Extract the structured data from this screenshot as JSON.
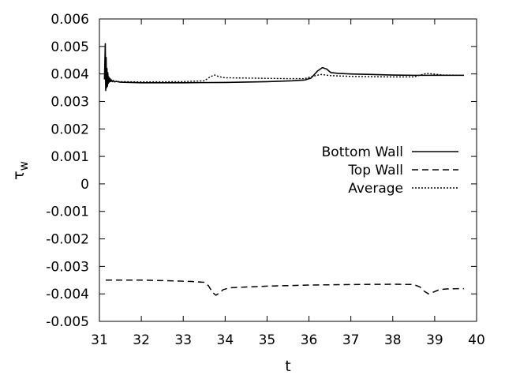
{
  "chart_data": {
    "type": "line",
    "title": "",
    "xlabel": "t",
    "ylabel_base": "τ",
    "ylabel_sub": "w",
    "xlim": [
      31,
      40
    ],
    "ylim": [
      -0.005,
      0.006
    ],
    "x_ticks": [
      31,
      32,
      33,
      34,
      35,
      36,
      37,
      38,
      39,
      40
    ],
    "x_tick_labels": [
      "31",
      "32",
      "33",
      "34",
      "35",
      "36",
      "37",
      "38",
      "39",
      "40"
    ],
    "y_ticks": [
      -0.005,
      -0.004,
      -0.003,
      -0.002,
      -0.001,
      0,
      0.001,
      0.002,
      0.003,
      0.004,
      0.005,
      0.006
    ],
    "y_tick_labels": [
      "-0.005",
      "-0.004",
      "-0.003",
      "-0.002",
      "-0.001",
      "0",
      "0.001",
      "0.002",
      "0.003",
      "0.004",
      "0.005",
      "0.006"
    ],
    "grid": false,
    "legend_position": "right-middle",
    "series": [
      {
        "name": "Bottom Wall",
        "style": "solid",
        "color": "#000000",
        "points": [
          [
            31.12,
            0.0038
          ],
          [
            31.14,
            0.0051
          ],
          [
            31.15,
            0.0034
          ],
          [
            31.16,
            0.0046
          ],
          [
            31.17,
            0.0035
          ],
          [
            31.18,
            0.0042
          ],
          [
            31.19,
            0.00355
          ],
          [
            31.2,
            0.00405
          ],
          [
            31.21,
            0.00365
          ],
          [
            31.22,
            0.0039
          ],
          [
            31.23,
            0.0037
          ],
          [
            31.24,
            0.00385
          ],
          [
            31.25,
            0.00372
          ],
          [
            31.26,
            0.00382
          ],
          [
            31.27,
            0.00373
          ],
          [
            31.29,
            0.00378
          ],
          [
            31.31,
            0.00372
          ],
          [
            31.33,
            0.00376
          ],
          [
            31.36,
            0.00371
          ],
          [
            31.4,
            0.00373
          ],
          [
            31.5,
            0.0037
          ],
          [
            32.0,
            0.00368
          ],
          [
            33.0,
            0.00368
          ],
          [
            34.0,
            0.00369
          ],
          [
            35.0,
            0.00372
          ],
          [
            35.6,
            0.00375
          ],
          [
            35.9,
            0.00378
          ],
          [
            36.05,
            0.00385
          ],
          [
            36.2,
            0.0041
          ],
          [
            36.32,
            0.00423
          ],
          [
            36.42,
            0.00418
          ],
          [
            36.52,
            0.00405
          ],
          [
            36.7,
            0.00402
          ],
          [
            37.0,
            0.004
          ],
          [
            37.5,
            0.00398
          ],
          [
            38.0,
            0.00396
          ],
          [
            38.5,
            0.00395
          ],
          [
            39.0,
            0.00395
          ],
          [
            39.7,
            0.00395
          ]
        ]
      },
      {
        "name": "Top Wall",
        "style": "dashed",
        "color": "#000000",
        "points": [
          [
            31.15,
            -0.0035
          ],
          [
            32.0,
            -0.0035
          ],
          [
            32.6,
            -0.00352
          ],
          [
            33.2,
            -0.00355
          ],
          [
            33.5,
            -0.00358
          ],
          [
            33.6,
            -0.0037
          ],
          [
            33.7,
            -0.00395
          ],
          [
            33.78,
            -0.00405
          ],
          [
            33.85,
            -0.00398
          ],
          [
            33.95,
            -0.00385
          ],
          [
            34.1,
            -0.00378
          ],
          [
            34.5,
            -0.00375
          ],
          [
            35.0,
            -0.00372
          ],
          [
            36.0,
            -0.00368
          ],
          [
            37.0,
            -0.00366
          ],
          [
            38.0,
            -0.00365
          ],
          [
            38.5,
            -0.00366
          ],
          [
            38.65,
            -0.00375
          ],
          [
            38.75,
            -0.0039
          ],
          [
            38.85,
            -0.004
          ],
          [
            38.95,
            -0.00395
          ],
          [
            39.1,
            -0.00385
          ],
          [
            39.3,
            -0.00382
          ],
          [
            39.7,
            -0.00381
          ]
        ]
      },
      {
        "name": "Average",
        "style": "dotted",
        "color": "#000000",
        "points": [
          [
            31.14,
            0.00375
          ],
          [
            31.2,
            0.00372
          ],
          [
            31.3,
            0.00373
          ],
          [
            31.5,
            0.00372
          ],
          [
            32.0,
            0.00371
          ],
          [
            33.0,
            0.00372
          ],
          [
            33.5,
            0.00375
          ],
          [
            33.65,
            0.0039
          ],
          [
            33.75,
            0.00396
          ],
          [
            33.85,
            0.0039
          ],
          [
            34.0,
            0.00386
          ],
          [
            34.5,
            0.00385
          ],
          [
            35.0,
            0.00384
          ],
          [
            35.5,
            0.00383
          ],
          [
            35.9,
            0.00383
          ],
          [
            36.1,
            0.00392
          ],
          [
            36.3,
            0.00398
          ],
          [
            36.5,
            0.00394
          ],
          [
            37.0,
            0.00391
          ],
          [
            37.5,
            0.0039
          ],
          [
            38.0,
            0.00389
          ],
          [
            38.5,
            0.00389
          ],
          [
            38.8,
            0.00402
          ],
          [
            38.95,
            0.004
          ],
          [
            39.2,
            0.00396
          ],
          [
            39.7,
            0.00395
          ]
        ]
      }
    ]
  }
}
